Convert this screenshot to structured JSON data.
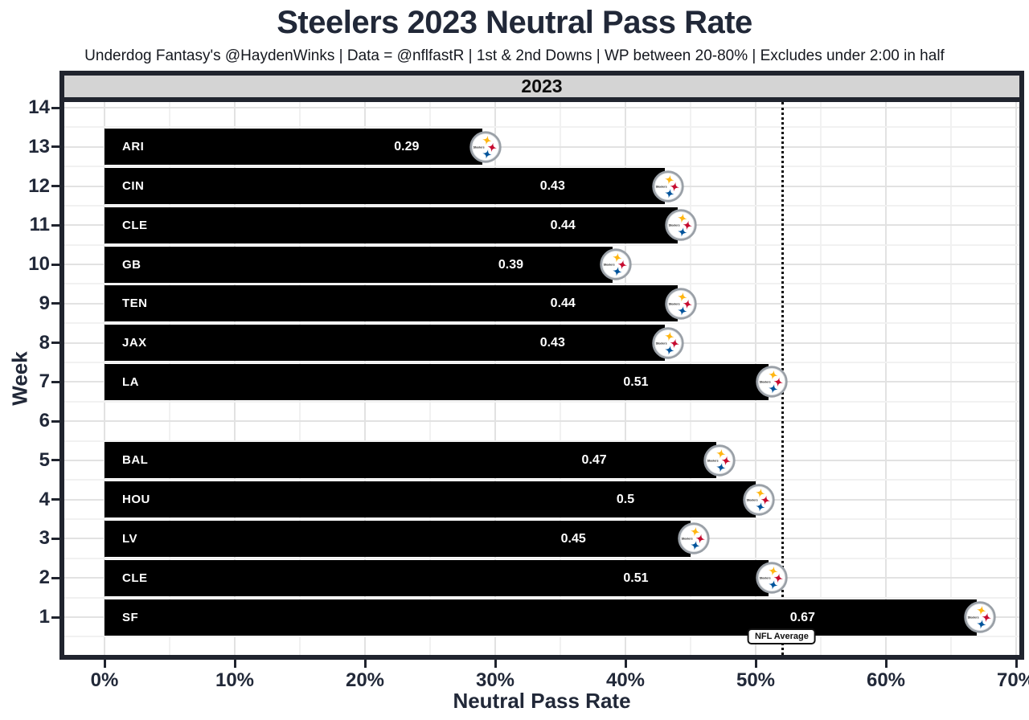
{
  "chart_data": {
    "type": "bar",
    "orientation": "horizontal",
    "title": "Steelers 2023 Neutral Pass Rate",
    "subtitle": "Underdog Fantasy's @HaydenWinks | Data = @nflfastR | 1st & 2nd Downs | WP between 20-80% | Excludes under 2:00 in half",
    "facet_label": "2023",
    "xlabel": "Neutral Pass Rate",
    "ylabel": "Week",
    "xlim_pct": [
      0,
      70
    ],
    "x_major_step_pct": 10,
    "x_minor_step_pct": 5,
    "x_tick_labels": [
      "0%",
      "10%",
      "20%",
      "30%",
      "40%",
      "50%",
      "60%",
      "70%"
    ],
    "y_tick_labels": [
      "14",
      "13",
      "12",
      "11",
      "10",
      "9",
      "8",
      "7",
      "6",
      "5",
      "4",
      "3",
      "2",
      "1"
    ],
    "grid": "on",
    "legend": "none",
    "bars": [
      {
        "week": 13,
        "opponent": "ARI",
        "value": 0.29,
        "label": "0.29"
      },
      {
        "week": 12,
        "opponent": "CIN",
        "value": 0.43,
        "label": "0.43"
      },
      {
        "week": 11,
        "opponent": "CLE",
        "value": 0.44,
        "label": "0.44"
      },
      {
        "week": 10,
        "opponent": "GB",
        "value": 0.39,
        "label": "0.39"
      },
      {
        "week": 9,
        "opponent": "TEN",
        "value": 0.44,
        "label": "0.44"
      },
      {
        "week": 8,
        "opponent": "JAX",
        "value": 0.43,
        "label": "0.43"
      },
      {
        "week": 7,
        "opponent": "LA",
        "value": 0.51,
        "label": "0.51"
      },
      {
        "week": 5,
        "opponent": "BAL",
        "value": 0.47,
        "label": "0.47"
      },
      {
        "week": 4,
        "opponent": "HOU",
        "value": 0.5,
        "label": "0.5"
      },
      {
        "week": 3,
        "opponent": "LV",
        "value": 0.45,
        "label": "0.45"
      },
      {
        "week": 2,
        "opponent": "CLE",
        "value": 0.51,
        "label": "0.51"
      },
      {
        "week": 1,
        "opponent": "SF",
        "value": 0.67,
        "label": "0.67"
      }
    ],
    "bye_weeks": [
      6,
      14
    ],
    "reference_line": {
      "label": "NFL Average",
      "value": 0.52
    },
    "value_label_position_fraction": 0.8,
    "logo": {
      "name": "steelers-logo",
      "text": "Steelers",
      "colors": {
        "gold": "#FFB612",
        "red": "#C60C30",
        "blue": "#00539B",
        "ring": "#9aa0a7"
      }
    },
    "colors": {
      "bar": "#000000",
      "bar_text": "#FFFFFF",
      "text": "#212838",
      "strip_bg": "#D4D4D4",
      "frame": "#20242E",
      "grid_major": "#E2E2E2",
      "grid_minor": "#F1F1F1",
      "reference_line": "#0B0B0B"
    }
  }
}
